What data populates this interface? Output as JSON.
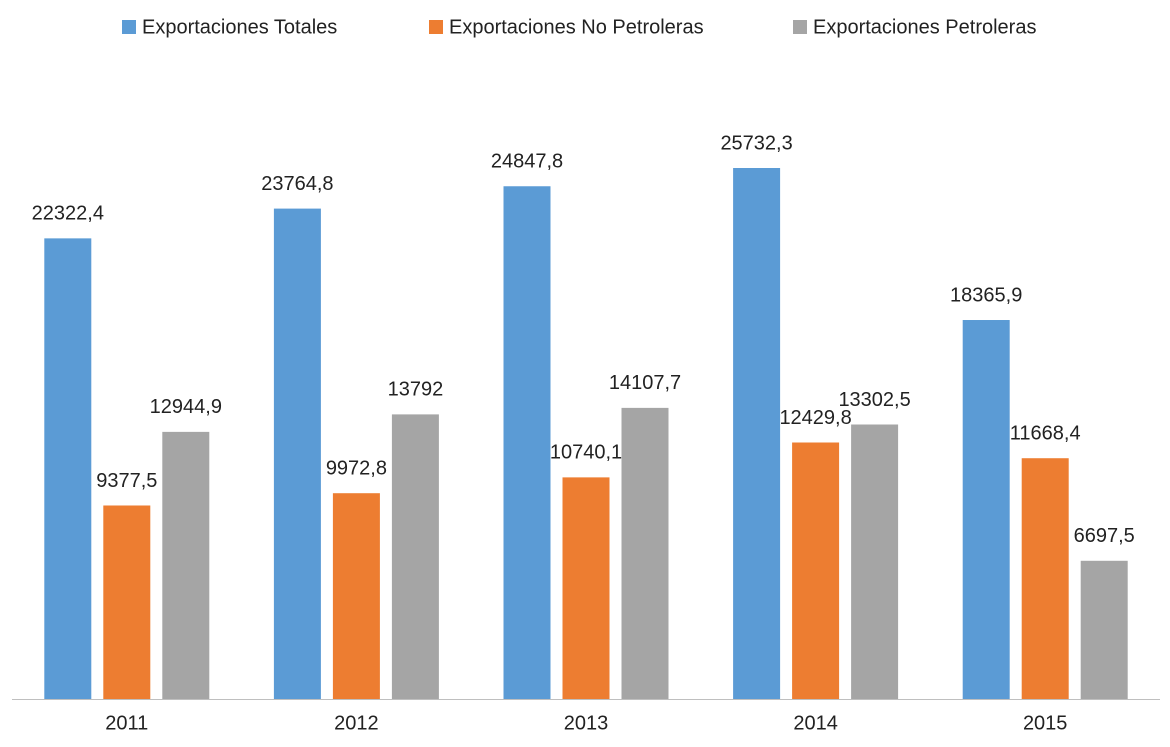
{
  "chart_data": {
    "type": "bar",
    "categories": [
      "2011",
      "2012",
      "2013",
      "2014",
      "2015"
    ],
    "series": [
      {
        "name": "Exportaciones Totales",
        "color": "#5b9bd5",
        "values": [
          22322.4,
          23764.8,
          24847.8,
          25732.3,
          18365.9
        ],
        "value_labels": [
          "22322,4",
          "23764,8",
          "24847,8",
          "25732,3",
          "18365,9"
        ]
      },
      {
        "name": "Exportaciones No Petroleras",
        "color": "#ed7d31",
        "values": [
          9377.5,
          9972.8,
          10740.1,
          12429.8,
          11668.4
        ],
        "value_labels": [
          "9377,5",
          "9972,8",
          "10740,1",
          "12429,8",
          "11668,4"
        ]
      },
      {
        "name": "Exportaciones Petroleras",
        "color": "#a5a5a5",
        "values": [
          12944.9,
          13792,
          14107.7,
          13302.5,
          6697.5
        ],
        "value_labels": [
          "12944,9",
          "13792",
          "14107,7",
          "13302,5",
          "6697,5"
        ]
      }
    ]
  }
}
